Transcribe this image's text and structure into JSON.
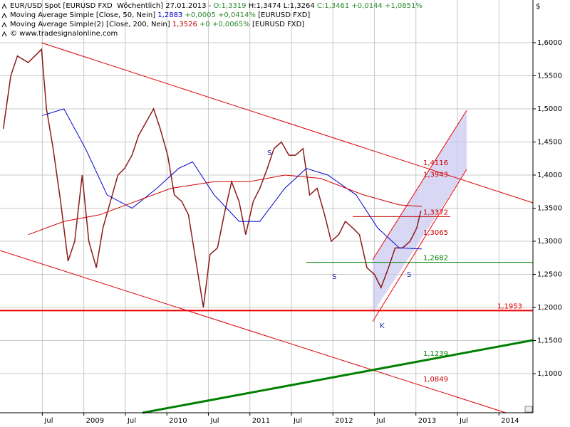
{
  "chart_data": {
    "type": "line",
    "header": [
      [
        {
          "text": "EUR/USD Spot [EURUSD FXD  Wöchentlich] 27.01.2013 - ",
          "color": "#000000"
        },
        {
          "text": "O:1,3319",
          "color": "#2e8b2e"
        },
        {
          "text": " H:1,3474 L:1,3264 ",
          "color": "#000000"
        },
        {
          "text": "C:1,3461 +0,0144 +1,0851%",
          "color": "#2e8b2e"
        }
      ],
      [
        {
          "text": "Moving Average Simple [Close, 50, Nein] ",
          "color": "#000000"
        },
        {
          "text": "1,2883",
          "color": "#0000cc"
        },
        {
          "text": " +0,0005 +0,0414%",
          "color": "#2e8b2e"
        },
        {
          "text": " [EURUSD FXD]",
          "color": "#000000"
        }
      ],
      [
        {
          "text": "Moving Average Simple(2) [Close, 200, Nein] ",
          "color": "#000000"
        },
        {
          "text": "1,3526",
          "color": "#cc0000"
        },
        {
          "text": " +0 +0,0065%",
          "color": "#2e8b2e"
        },
        {
          "text": " [EURUSD FXD]",
          "color": "#000000"
        }
      ],
      [
        {
          "text": "© www.tradesignalonline.com",
          "color": "#000000"
        }
      ]
    ],
    "y_unit": "$",
    "xlim": [
      2007.99,
      2014.41
    ],
    "ylim": [
      1.0409,
      1.6645
    ],
    "xticks": [
      {
        "value": 2008.5,
        "label": "Jul"
      },
      2009,
      {
        "value": 2009.5,
        "label": "Jul"
      },
      2010,
      {
        "value": 2010.5,
        "label": "Jul"
      },
      2011,
      {
        "value": 2011.5,
        "label": "Jul"
      },
      2012,
      {
        "value": 2012.5,
        "label": "Jul"
      },
      2013,
      {
        "value": 2013.5,
        "label": "Jul"
      },
      2014
    ],
    "yticks": [
      {
        "value": 1.1,
        "label": "1,1000"
      },
      {
        "value": 1.15,
        "label": "1,1500"
      },
      {
        "value": 1.2,
        "label": "1,2000"
      },
      {
        "value": 1.25,
        "label": "1,2500"
      },
      {
        "value": 1.3,
        "label": "1,3000"
      },
      {
        "value": 1.35,
        "label": "1,3500"
      },
      {
        "value": 1.4,
        "label": "1,4000"
      },
      {
        "value": 1.45,
        "label": "1,4500"
      },
      {
        "value": 1.5,
        "label": "1,5000"
      },
      {
        "value": 1.55,
        "label": "1,5500"
      },
      {
        "value": 1.6,
        "label": "1,6000"
      }
    ],
    "grid": true,
    "series": [
      {
        "color": "#8b1a1a",
        "width": 1.5,
        "x": [
          2008.03,
          2008.12,
          2008.2,
          2008.33,
          2008.49,
          2008.55,
          2008.63,
          2008.72,
          2008.81,
          2008.89,
          2008.98,
          2009.06,
          2009.15,
          2009.23,
          2009.32,
          2009.41,
          2009.49,
          2009.58,
          2009.66,
          2009.75,
          2009.84,
          2009.92,
          2010.01,
          2010.09,
          2010.18,
          2010.26,
          2010.35,
          2010.44,
          2010.52,
          2010.61,
          2010.69,
          2010.78,
          2010.87,
          2010.95,
          2011.04,
          2011.12,
          2011.21,
          2011.29,
          2011.38,
          2011.47,
          2011.55,
          2011.64,
          2011.72,
          2011.81,
          2011.9,
          2011.98,
          2012.07,
          2012.15,
          2012.24,
          2012.32,
          2012.41,
          2012.5,
          2012.58,
          2012.67,
          2012.75,
          2012.84,
          2012.93,
          2013.01,
          2013.06
        ],
        "values": [
          1.47,
          1.55,
          1.58,
          1.57,
          1.59,
          1.5,
          1.44,
          1.36,
          1.27,
          1.3,
          1.4,
          1.3,
          1.26,
          1.32,
          1.36,
          1.4,
          1.41,
          1.43,
          1.46,
          1.48,
          1.5,
          1.47,
          1.43,
          1.37,
          1.36,
          1.34,
          1.27,
          1.2,
          1.28,
          1.29,
          1.34,
          1.39,
          1.36,
          1.31,
          1.36,
          1.38,
          1.41,
          1.44,
          1.45,
          1.43,
          1.43,
          1.44,
          1.37,
          1.38,
          1.34,
          1.3,
          1.31,
          1.33,
          1.32,
          1.31,
          1.26,
          1.25,
          1.23,
          1.26,
          1.29,
          1.29,
          1.3,
          1.32,
          1.3461
        ]
      },
      {
        "color": "#0000cc",
        "width": 1,
        "x": [
          2008.5,
          2008.76,
          2009.02,
          2009.28,
          2009.58,
          2009.88,
          2010.14,
          2010.31,
          2010.57,
          2010.87,
          2011.12,
          2011.42,
          2011.68,
          2011.94,
          2012.28,
          2012.54,
          2012.8,
          2013.07
        ],
        "values": [
          1.49,
          1.5,
          1.44,
          1.37,
          1.35,
          1.38,
          1.41,
          1.42,
          1.37,
          1.33,
          1.33,
          1.38,
          1.41,
          1.4,
          1.37,
          1.32,
          1.29,
          1.2883
        ]
      },
      {
        "color": "#cc0000",
        "width": 1,
        "x": [
          2008.33,
          2008.76,
          2009.19,
          2009.62,
          2010.05,
          2010.57,
          2010.99,
          2011.42,
          2011.85,
          2012.37,
          2012.8,
          2013.07
        ],
        "values": [
          1.31,
          1.33,
          1.34,
          1.36,
          1.38,
          1.39,
          1.39,
          1.4,
          1.395,
          1.37,
          1.355,
          1.3526
        ]
      }
    ],
    "levels": [
      {
        "value": 1.4116,
        "label": "1,4116",
        "color": "#cc0000"
      },
      {
        "value": 1.3943,
        "label": "1,3943",
        "color": "#cc0000"
      },
      {
        "value": 1.3372,
        "label": "1,3372",
        "color": "#cc0000"
      },
      {
        "value": 1.3065,
        "label": "1,3065",
        "color": "#cc0000"
      },
      {
        "value": 1.2682,
        "label": "1,2682",
        "color": "#008000"
      },
      {
        "value": 1.1953,
        "label": "1,1953",
        "color": "#ee0000"
      },
      {
        "value": 1.1239,
        "label": "1,1239",
        "color": "#008000"
      },
      {
        "value": 1.0849,
        "label": "1,0849",
        "color": "#cc0000"
      }
    ],
    "annotations": [
      "S",
      "S",
      "S",
      "K"
    ]
  }
}
